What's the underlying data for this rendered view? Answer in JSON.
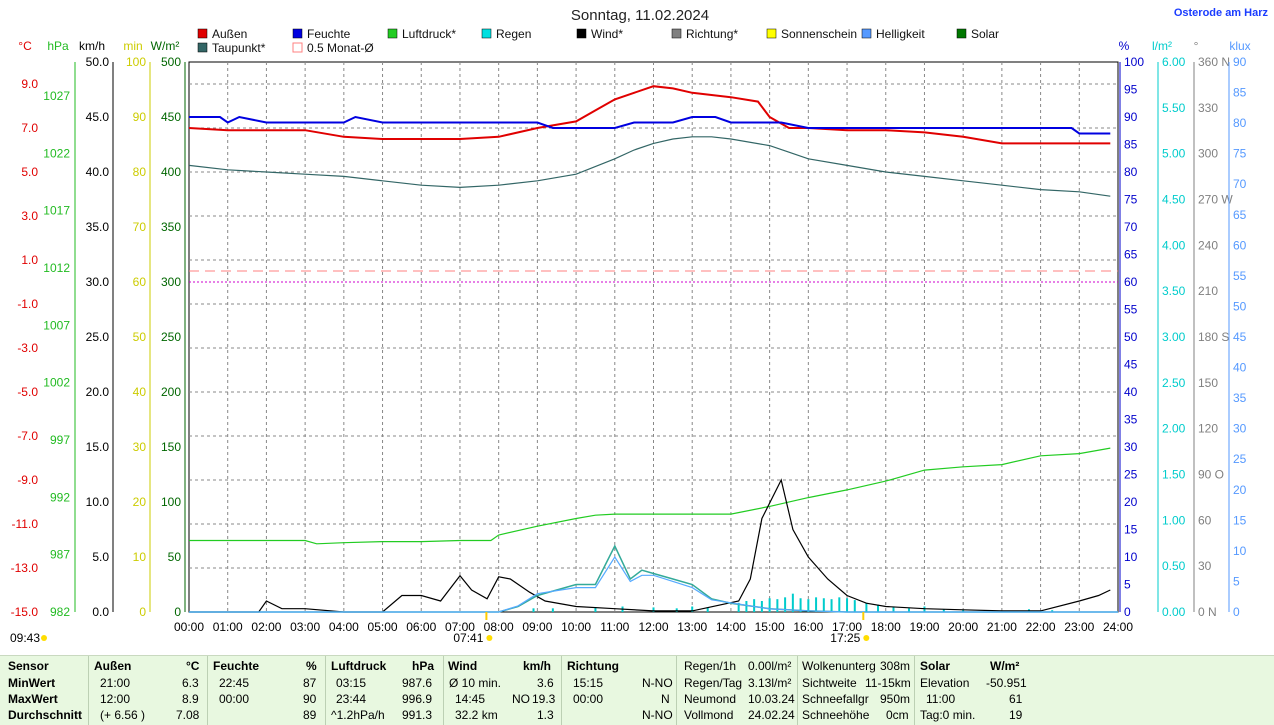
{
  "chart_data": {
    "type": "line",
    "title": "Sonntag, 11.02.2024",
    "location": "Osterode am Harz",
    "legend": [
      {
        "name": "Außen",
        "color": "#e00000"
      },
      {
        "name": "Feuchte",
        "color": "#0000e0"
      },
      {
        "name": "Luftdruck*",
        "color": "#22cc22"
      },
      {
        "name": "Regen",
        "color": "#00e0e0"
      },
      {
        "name": "Wind*",
        "color": "#000000"
      },
      {
        "name": "Richtung*",
        "color": "#808080"
      },
      {
        "name": "Sonnenschein",
        "color": "#ffff00"
      },
      {
        "name": "Helligkeit",
        "color": "#5599ff"
      },
      {
        "name": "Solar",
        "color": "#007700"
      },
      {
        "name": "Taupunkt*",
        "color": "#336666"
      },
      {
        "name": "0.5 Monat-Ø",
        "color": "#ff8080"
      }
    ],
    "left_axes": [
      {
        "unit": "°C",
        "color": "#e00000",
        "ticks": [
          "9.0",
          "7.0",
          "5.0",
          "3.0",
          "1.0",
          "-1.0",
          "-3.0",
          "-5.0",
          "-7.0",
          "-9.0",
          "-11.0",
          "-13.0",
          "-15.0"
        ]
      },
      {
        "unit": "hPa",
        "color": "#22bb22",
        "ticks": [
          "1027",
          "1022",
          "1017",
          "1012",
          "1007",
          "1002",
          "997",
          "992",
          "987",
          "982"
        ]
      },
      {
        "unit": "km/h",
        "color": "#000000",
        "ticks": [
          "50.0",
          "45.0",
          "40.0",
          "35.0",
          "30.0",
          "25.0",
          "20.0",
          "15.0",
          "10.0",
          "5.0",
          "0.0"
        ]
      },
      {
        "unit": "min",
        "color": "#cccc00",
        "ticks": [
          "100",
          "90",
          "80",
          "70",
          "60",
          "50",
          "40",
          "30",
          "20",
          "10",
          "0"
        ]
      },
      {
        "unit": "W/m²",
        "color": "#006600",
        "ticks": [
          "500",
          "450",
          "400",
          "350",
          "300",
          "250",
          "200",
          "150",
          "100",
          "50",
          "0"
        ]
      }
    ],
    "right_axes": [
      {
        "unit": "%",
        "color": "#0000cc",
        "ticks": [
          "100",
          "95",
          "90",
          "85",
          "80",
          "75",
          "70",
          "65",
          "60",
          "55",
          "50",
          "45",
          "40",
          "35",
          "30",
          "25",
          "20",
          "15",
          "10",
          "5",
          "0"
        ]
      },
      {
        "unit": "l/m²",
        "color": "#00cccc",
        "ticks": [
          "6.00",
          "5.50",
          "5.00",
          "4.50",
          "4.00",
          "3.50",
          "3.00",
          "2.50",
          "2.00",
          "1.50",
          "1.00",
          "0.50",
          "0.00"
        ]
      },
      {
        "unit": "°",
        "color": "#808080",
        "ticks": [
          "360 N",
          "330",
          "300",
          "270 W",
          "240",
          "210",
          "180 S",
          "150",
          "120",
          "90 O",
          "60",
          "30",
          "0 N"
        ]
      },
      {
        "unit": "klux",
        "color": "#5599ff",
        "ticks": [
          "90",
          "85",
          "80",
          "75",
          "70",
          "65",
          "60",
          "55",
          "50",
          "45",
          "40",
          "35",
          "30",
          "25",
          "20",
          "15",
          "10",
          "5",
          "0"
        ]
      }
    ],
    "x_ticks": [
      "00:00",
      "01:00",
      "02:00",
      "03:00",
      "04:00",
      "05:00",
      "06:00",
      "07:00",
      "08:00",
      "09:00",
      "10:00",
      "11:00",
      "12:00",
      "13:00",
      "14:00",
      "15:00",
      "16:00",
      "17:00",
      "18:00",
      "19:00",
      "20:00",
      "21:00",
      "22:00",
      "23:00",
      "24:00"
    ],
    "markers": {
      "sunrise": "07:41",
      "sunset": "17:25",
      "corner": "09:43"
    },
    "series": [
      {
        "name": "Außen",
        "axis": "°C",
        "x": [
          0,
          1,
          2,
          3,
          4,
          5,
          6,
          7,
          8,
          9,
          10,
          10.5,
          11,
          11.5,
          12,
          12.5,
          13,
          14,
          14.7,
          15,
          15.5,
          16,
          17,
          18,
          19,
          20,
          21,
          22,
          23,
          23.8
        ],
        "y": [
          7.0,
          6.9,
          6.9,
          6.9,
          6.6,
          6.5,
          6.5,
          6.5,
          6.6,
          7.0,
          7.3,
          7.8,
          8.3,
          8.6,
          8.9,
          8.8,
          8.6,
          8.4,
          8.2,
          7.5,
          7.0,
          7.0,
          6.9,
          6.9,
          6.8,
          6.6,
          6.3,
          6.3,
          6.3,
          6.3
        ]
      },
      {
        "name": "Feuchte",
        "axis": "%",
        "x": [
          0,
          0.8,
          1,
          1.3,
          2,
          4,
          4.3,
          5,
          9,
          9.4,
          11,
          11.5,
          12,
          12.5,
          13,
          13.6,
          14,
          15,
          15.3,
          16,
          19,
          21,
          22,
          22.5,
          22.8,
          23,
          23.8
        ],
        "y": [
          90,
          90,
          89,
          90,
          89,
          89,
          90,
          89,
          89,
          88,
          88,
          89,
          89,
          89,
          90,
          90,
          89,
          89,
          89,
          88,
          88,
          88,
          88,
          88,
          88,
          87,
          87
        ]
      },
      {
        "name": "Luftdruck*",
        "axis": "hPa",
        "x": [
          0,
          3,
          3.3,
          4,
          5,
          6,
          7,
          7.8,
          8,
          9,
          10,
          10.5,
          11,
          12,
          13,
          14,
          15,
          16,
          17,
          18,
          19,
          20,
          21,
          22,
          23,
          23.8
        ],
        "y": [
          988.5,
          988.5,
          988.2,
          988.3,
          988.4,
          988.4,
          988.5,
          988.5,
          989.0,
          989.8,
          990.5,
          990.8,
          990.9,
          990.9,
          990.9,
          990.9,
          991.6,
          992.4,
          993.1,
          993.9,
          994.9,
          995.2,
          995.4,
          996.2,
          996.4,
          996.9
        ]
      },
      {
        "name": "Wind*",
        "axis": "km/h",
        "x": [
          0,
          1.8,
          2,
          2.4,
          3,
          4,
          5,
          5.5,
          6,
          6.5,
          7,
          7.3,
          7.7,
          8,
          8.3,
          8.8,
          9.2,
          10,
          11,
          12,
          13,
          14.2,
          14.5,
          14.8,
          15.3,
          15.6,
          16,
          16.5,
          17,
          17.5,
          18,
          19,
          20,
          21,
          22,
          23,
          23.5,
          23.8
        ],
        "y": [
          0,
          0,
          1.0,
          0.3,
          0.3,
          0,
          0,
          1.5,
          1.5,
          1.0,
          3.3,
          2.0,
          1.2,
          3.2,
          3.0,
          1.8,
          1.0,
          0.5,
          0.3,
          0.1,
          0.1,
          1.0,
          3.0,
          8.5,
          12.0,
          7.5,
          5.0,
          3.0,
          1.5,
          0.8,
          0.5,
          0.3,
          0.2,
          0.1,
          0.1,
          1.0,
          1.5,
          2.0
        ]
      },
      {
        "name": "Taupunkt*",
        "axis": "°C",
        "x": [
          0,
          1,
          2,
          3,
          4,
          5,
          6,
          7,
          8,
          9,
          10,
          11,
          11.5,
          12,
          12.5,
          13,
          13.5,
          14,
          15,
          15.5,
          16,
          17,
          18,
          19,
          20,
          21,
          22,
          23,
          23.8
        ],
        "y": [
          5.3,
          5.1,
          5.0,
          4.9,
          4.8,
          4.6,
          4.4,
          4.3,
          4.4,
          4.6,
          4.9,
          5.6,
          6.0,
          6.3,
          6.5,
          6.6,
          6.6,
          6.5,
          6.2,
          5.9,
          5.6,
          5.3,
          5.0,
          4.8,
          4.6,
          4.4,
          4.2,
          4.1,
          3.9
        ]
      },
      {
        "name": "Solar",
        "axis": "W/m²",
        "x": [
          0,
          8,
          8.5,
          9,
          9.5,
          10,
          10.5,
          11,
          11.4,
          11.7,
          12,
          12.5,
          13,
          13.5,
          14,
          15,
          16,
          17,
          18,
          24
        ],
        "y": [
          0,
          0,
          5,
          15,
          20,
          25,
          25,
          60,
          30,
          38,
          35,
          30,
          25,
          12,
          8,
          3,
          1,
          0,
          0,
          0
        ]
      },
      {
        "name": "Helligkeit",
        "axis": "klux",
        "x": [
          0,
          8,
          8.5,
          9,
          9.5,
          10,
          10.5,
          11,
          11.4,
          11.7,
          12,
          12.5,
          13,
          13.5,
          14,
          15,
          16,
          17,
          18,
          24
        ],
        "y": [
          0,
          0,
          1,
          3,
          3.5,
          4,
          4,
          9,
          5,
          6,
          6,
          5,
          4,
          2,
          1.5,
          0.5,
          0.2,
          0,
          0,
          0
        ]
      },
      {
        "name": "0.5 Monat-Ø",
        "axis": "°C",
        "x": [
          0,
          24
        ],
        "y": [
          0.5,
          0.5
        ]
      }
    ],
    "rain_bars": {
      "axis": "l/m²",
      "x": [
        8.9,
        9.4,
        10.5,
        11.2,
        12,
        12.6,
        13,
        13.4,
        14.2,
        14.4,
        14.6,
        14.8,
        15,
        15.2,
        15.4,
        15.6,
        15.8,
        16,
        16.2,
        16.4,
        16.6,
        16.8,
        17,
        17.2,
        17.5,
        17.8,
        18.2,
        18.6,
        19,
        19.5,
        20,
        21.7,
        22.3
      ],
      "y": [
        0.04,
        0.04,
        0.05,
        0.06,
        0.05,
        0.04,
        0.06,
        0.05,
        0.1,
        0.12,
        0.14,
        0.12,
        0.15,
        0.14,
        0.16,
        0.2,
        0.15,
        0.14,
        0.16,
        0.15,
        0.14,
        0.16,
        0.15,
        0.13,
        0.1,
        0.08,
        0.05,
        0.04,
        0.06,
        0.03,
        0.02,
        0.03,
        0.02
      ]
    }
  },
  "table": {
    "sensor": {
      "label": "Sensor",
      "rows": [
        "MinWert",
        "MaxWert",
        "Durchschnitt"
      ]
    },
    "aussen": {
      "label": "Außen",
      "unit": "°C",
      "time": [
        "21:00",
        "12:00",
        "(+ 6.56 )"
      ],
      "val": [
        "6.3",
        "8.9",
        "7.08"
      ]
    },
    "feuchte": {
      "label": "Feuchte",
      "unit": "%",
      "time": [
        "22:45",
        "00:00",
        ""
      ],
      "val": [
        "87",
        "90",
        "89"
      ]
    },
    "luftdruck": {
      "label": "Luftdruck",
      "unit": "hPa",
      "time": [
        "03:15",
        "23:44",
        "^1.2hPa/h"
      ],
      "val": [
        "987.6",
        "996.9",
        "991.3"
      ]
    },
    "wind": {
      "label": "Wind",
      "unit": "km/h",
      "time": [
        "Ø 10 min.",
        "14:45",
        "32.2 km"
      ],
      "mid": [
        "",
        "NO",
        "",
        ""
      ],
      "val": [
        "3.6",
        "19.3",
        "1.3"
      ]
    },
    "richtung": {
      "label": "Richtung",
      "time": [
        "15:15",
        "00:00",
        ""
      ],
      "val": [
        "N-NO",
        "N",
        "N-NO"
      ]
    },
    "regen": {
      "label": [
        "Regen/1h",
        "Regen/Tag",
        "Neumond",
        "Vollmond"
      ],
      "val": [
        "0.00l/m²",
        "3.13l/m²",
        "10.03.24",
        "24.02.24"
      ]
    },
    "wolken": {
      "label": [
        "Wolkenunterg",
        "Sichtweite",
        "Schneefallgr",
        "Schneehöhe"
      ],
      "val": [
        "308m",
        "11-15km",
        "950m",
        "0cm"
      ]
    },
    "solar": {
      "label": "Solar",
      "unit": "W/m²",
      "rows": [
        "Elevation",
        "11:00",
        "Tag:0 min."
      ],
      "val": [
        "-50.951",
        "61",
        "19"
      ]
    }
  }
}
